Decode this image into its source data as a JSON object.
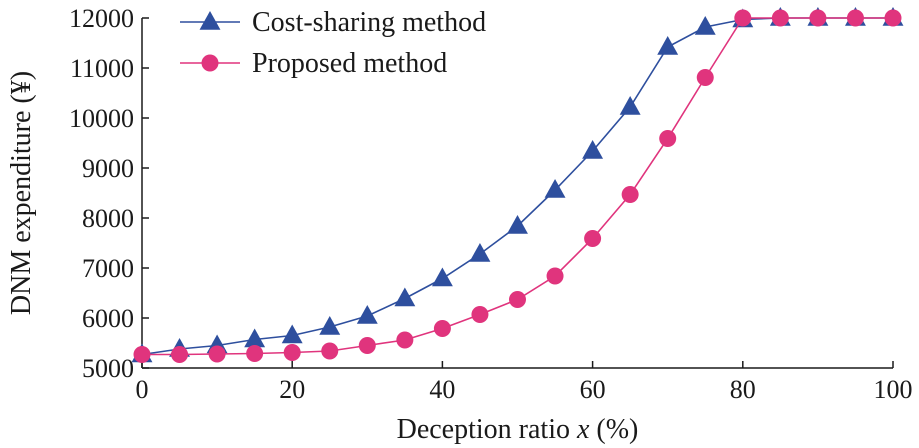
{
  "chart_data": {
    "type": "line",
    "xlabel": "Deception ratio x (%)",
    "xlabel_prefix": "Deception ratio ",
    "xlabel_var": "x",
    "xlabel_suffix": " (%)",
    "ylabel": "DNM expenditure (¥)",
    "xlim": [
      0,
      100
    ],
    "ylim": [
      5000,
      12000
    ],
    "xticks": [
      0,
      20,
      40,
      60,
      80,
      100
    ],
    "yticks": [
      5000,
      6000,
      7000,
      8000,
      9000,
      10000,
      11000,
      12000
    ],
    "grid": false,
    "legend_position": "top-left",
    "x": [
      0,
      5,
      10,
      15,
      20,
      25,
      30,
      35,
      40,
      45,
      50,
      55,
      60,
      65,
      70,
      75,
      80,
      85,
      90,
      95,
      100
    ],
    "series": [
      {
        "name": "Cost-sharing method",
        "marker": "triangle",
        "color": "#2e4f9e",
        "values": [
          5270,
          5380,
          5450,
          5570,
          5650,
          5820,
          6040,
          6390,
          6790,
          7280,
          7840,
          8560,
          9340,
          10220,
          11420,
          11820,
          11970,
          12000,
          12000,
          12000,
          12000
        ]
      },
      {
        "name": "Proposed method",
        "marker": "circle",
        "color": "#e0347d",
        "values": [
          5270,
          5270,
          5280,
          5290,
          5310,
          5340,
          5450,
          5560,
          5790,
          6070,
          6370,
          6840,
          7590,
          8470,
          9590,
          10810,
          12000,
          12000,
          12000,
          12000,
          12000
        ]
      }
    ]
  }
}
